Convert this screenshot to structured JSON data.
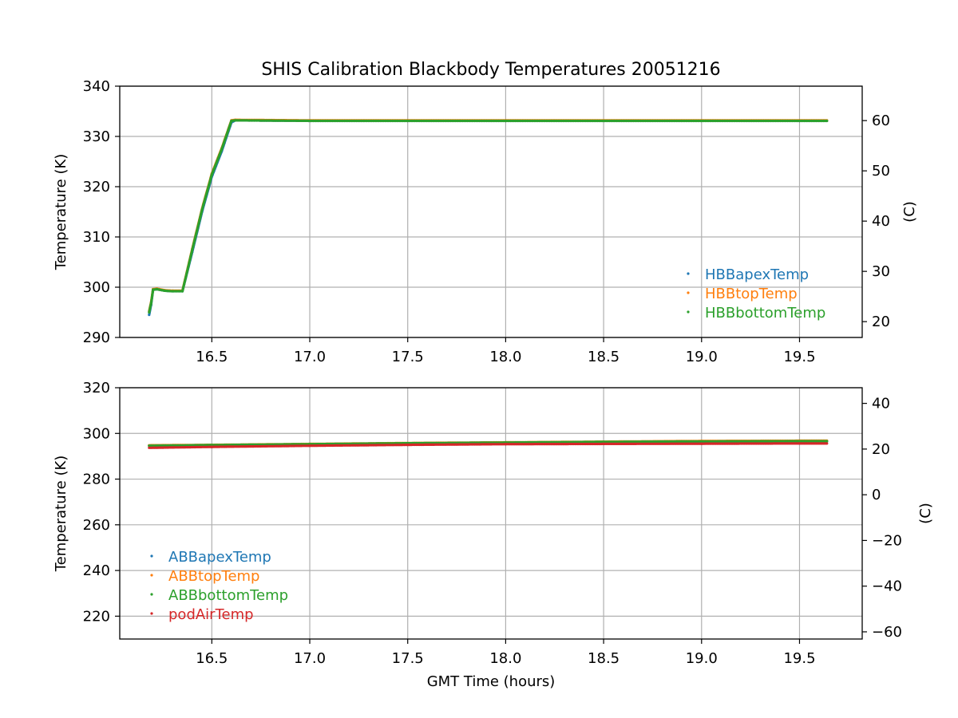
{
  "chart_data": {
    "type": "scatter",
    "title": "SHIS Calibration Blackbody Temperatures 20051216",
    "xlabel": "GMT Time (hours)",
    "colors": {
      "blue": "#1f77b4",
      "orange": "#ff7f0e",
      "green": "#2ca02c",
      "red": "#d62728"
    },
    "panels": [
      {
        "ylabel": "Temperature (K)",
        "ylabel_right": "(C)",
        "xlim": [
          16.03,
          19.82
        ],
        "ylim": [
          290,
          340
        ],
        "ylim_right_celsius": [
          16.85,
          66.85
        ],
        "xticks": [
          16.5,
          17.0,
          17.5,
          18.0,
          18.5,
          19.0,
          19.5
        ],
        "xtick_labels": [
          "16.5",
          "17.0",
          "17.5",
          "18.0",
          "18.5",
          "19.0",
          "19.5"
        ],
        "yticks": [
          290,
          300,
          310,
          320,
          330,
          340
        ],
        "ytick_labels": [
          "290",
          "300",
          "310",
          "320",
          "330",
          "340"
        ],
        "yticks_right": [
          20,
          30,
          40,
          50,
          60
        ],
        "ytick_labels_right": [
          "20",
          "30",
          "40",
          "50",
          "60"
        ],
        "grid": true,
        "legend_position": "lower-right",
        "series": [
          {
            "name": "HBBapexTemp",
            "color": "#1f77b4",
            "x": [
              16.18,
              16.19,
              16.2,
              16.22,
              16.26,
              16.3,
              16.35,
              16.4,
              16.45,
              16.5,
              16.55,
              16.6,
              16.62,
              17.0,
              17.5,
              18.0,
              18.5,
              19.0,
              19.5,
              19.64
            ],
            "y": [
              294.5,
              296.5,
              299.5,
              299.6,
              299.3,
              299.2,
              299.2,
              307.0,
              315.0,
              322.0,
              327.0,
              332.8,
              333.2,
              333.1,
              333.1,
              333.1,
              333.1,
              333.1,
              333.1,
              333.1
            ]
          },
          {
            "name": "HBBtopTemp",
            "color": "#ff7f0e",
            "x": [
              16.18,
              16.19,
              16.2,
              16.22,
              16.26,
              16.3,
              16.35,
              16.4,
              16.45,
              16.5,
              16.55,
              16.6,
              16.62,
              17.0,
              17.5,
              18.0,
              18.5,
              19.0,
              19.5,
              19.64
            ],
            "y": [
              295.2,
              297.0,
              299.6,
              299.7,
              299.4,
              299.3,
              299.3,
              307.6,
              315.6,
              322.6,
              327.6,
              333.2,
              333.3,
              333.2,
              333.2,
              333.2,
              333.2,
              333.2,
              333.2,
              333.2
            ]
          },
          {
            "name": "HBBbottomTemp",
            "color": "#2ca02c",
            "x": [
              16.18,
              16.19,
              16.2,
              16.22,
              16.26,
              16.3,
              16.35,
              16.4,
              16.45,
              16.5,
              16.55,
              16.6,
              16.62,
              17.0,
              17.5,
              18.0,
              18.5,
              19.0,
              19.5,
              19.64
            ],
            "y": [
              295.0,
              296.8,
              299.5,
              299.6,
              299.3,
              299.2,
              299.2,
              307.4,
              315.4,
              322.4,
              327.4,
              333.1,
              333.2,
              333.1,
              333.1,
              333.1,
              333.1,
              333.1,
              333.1,
              333.1
            ]
          }
        ]
      },
      {
        "ylabel": "Temperature (K)",
        "ylabel_right": "(C)",
        "xlim": [
          16.03,
          19.82
        ],
        "ylim": [
          210,
          320
        ],
        "ylim_right_celsius": [
          -63.15,
          46.85
        ],
        "xticks": [
          16.5,
          17.0,
          17.5,
          18.0,
          18.5,
          19.0,
          19.5
        ],
        "xtick_labels": [
          "16.5",
          "17.0",
          "17.5",
          "18.0",
          "18.5",
          "19.0",
          "19.5"
        ],
        "yticks": [
          220,
          240,
          260,
          280,
          300,
          320
        ],
        "ytick_labels": [
          "220",
          "240",
          "260",
          "280",
          "300",
          "320"
        ],
        "yticks_right": [
          -60,
          -40,
          -20,
          0,
          20,
          40
        ],
        "ytick_labels_right": [
          "−60",
          "−40",
          "−20",
          "0",
          "20",
          "40"
        ],
        "grid": true,
        "legend_position": "lower-left",
        "series": [
          {
            "name": "ABBapexTemp",
            "color": "#1f77b4",
            "x": [
              16.18,
              16.5,
              17.0,
              17.5,
              18.0,
              18.5,
              19.0,
              19.5,
              19.64
            ],
            "y": [
              294.7,
              294.9,
              295.3,
              295.7,
              296.0,
              296.2,
              296.4,
              296.5,
              296.5
            ]
          },
          {
            "name": "ABBtopTemp",
            "color": "#ff7f0e",
            "x": [
              16.18,
              16.5,
              17.0,
              17.5,
              18.0,
              18.5,
              19.0,
              19.5,
              19.64
            ],
            "y": [
              294.8,
              295.0,
              295.4,
              295.8,
              296.1,
              296.4,
              296.7,
              296.8,
              296.8
            ]
          },
          {
            "name": "ABBbottomTemp",
            "color": "#2ca02c",
            "x": [
              16.18,
              16.5,
              17.0,
              17.5,
              18.0,
              18.5,
              19.0,
              19.5,
              19.64
            ],
            "y": [
              294.6,
              294.9,
              295.3,
              295.7,
              296.0,
              296.3,
              296.5,
              296.6,
              296.6
            ]
          },
          {
            "name": "podAirTemp",
            "color": "#d62728",
            "x": [
              16.18,
              16.5,
              17.0,
              17.5,
              18.0,
              18.5,
              19.0,
              19.5,
              19.64
            ],
            "y": [
              293.7,
              294.1,
              294.6,
              295.0,
              295.3,
              295.4,
              295.5,
              295.6,
              295.6
            ]
          }
        ]
      }
    ]
  }
}
